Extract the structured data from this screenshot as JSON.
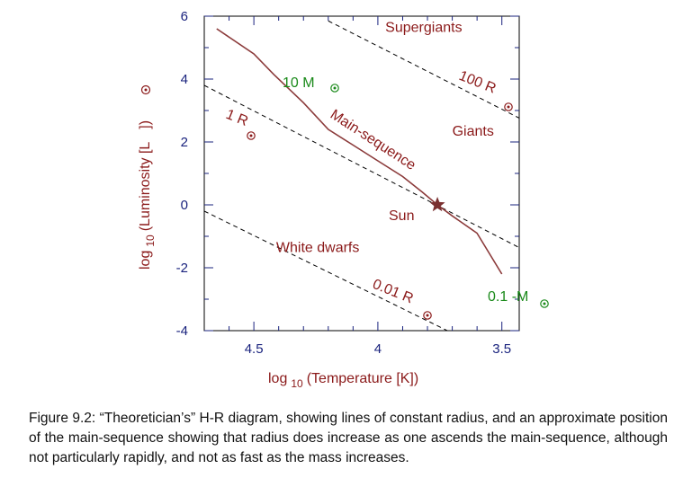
{
  "chart_data": {
    "type": "line",
    "x_axis": {
      "label": "log",
      "label_sub": "10",
      "label_rest": "(Temperature [K])",
      "range": [
        4.7,
        3.43
      ],
      "reversed": true,
      "ticks": [
        4.5,
        4,
        3.5
      ],
      "tick_labels": [
        "4.5",
        "4",
        "3.5"
      ]
    },
    "y_axis": {
      "label": "log",
      "label_sub": "10",
      "label_rest": "(Luminosity [L",
      "label_close": "])",
      "range": [
        -4,
        6
      ],
      "ticks": [
        6,
        4,
        2,
        0,
        -2,
        -4
      ],
      "tick_labels": [
        "6",
        "4",
        "2",
        "0",
        "-2",
        "-4"
      ]
    },
    "main_sequence": {
      "label": "Main-sequence",
      "x": [
        4.65,
        4.5,
        4.42,
        4.3,
        4.2,
        4.1,
        4.0,
        3.9,
        3.82,
        3.76,
        3.7,
        3.6,
        3.5
      ],
      "y": [
        5.6,
        4.8,
        4.15,
        3.25,
        2.4,
        1.9,
        1.4,
        0.9,
        0.4,
        0.0,
        -0.35,
        -0.9,
        -2.2
      ]
    },
    "radius_lines": [
      {
        "label_value": "1 R",
        "x": [
          4.7,
          3.43
        ],
        "y": [
          3.8,
          -1.36
        ]
      },
      {
        "label_value": "100 R",
        "x": [
          4.2,
          3.43
        ],
        "y": [
          5.85,
          2.76
        ]
      },
      {
        "label_value": "0.01 R",
        "x": [
          4.7,
          3.72
        ],
        "y": [
          -0.2,
          -4.0
        ]
      }
    ],
    "sun": {
      "label": "Sun",
      "x": 3.76,
      "y": 0.0
    },
    "regions": [
      {
        "label": "Supergiants",
        "x": 3.97,
        "y": 5.5
      },
      {
        "label": "Giants",
        "x": 3.7,
        "y": 2.2
      },
      {
        "label": "White dwarfs",
        "x": 4.41,
        "y": -1.5
      }
    ],
    "mass_labels": [
      {
        "label": "10  M",
        "x": 4.33,
        "y": 3.85
      },
      {
        "label": "0.1 -M",
        "x": 3.5,
        "y": -3.0
      }
    ],
    "solar_symbol_color": "#8b1a1a",
    "mass_color": "#1a8a1a",
    "curve_color": "#8b3a3a",
    "tick_color": "#1a237e"
  },
  "caption": "Figure 9.2: “Theoretician’s” H-R diagram, showing lines of constant radius, and an approximate position of the main-sequence showing that radius does increase as one ascends the main-sequence, although not particularly rapidly, and not as fast as the mass increases."
}
